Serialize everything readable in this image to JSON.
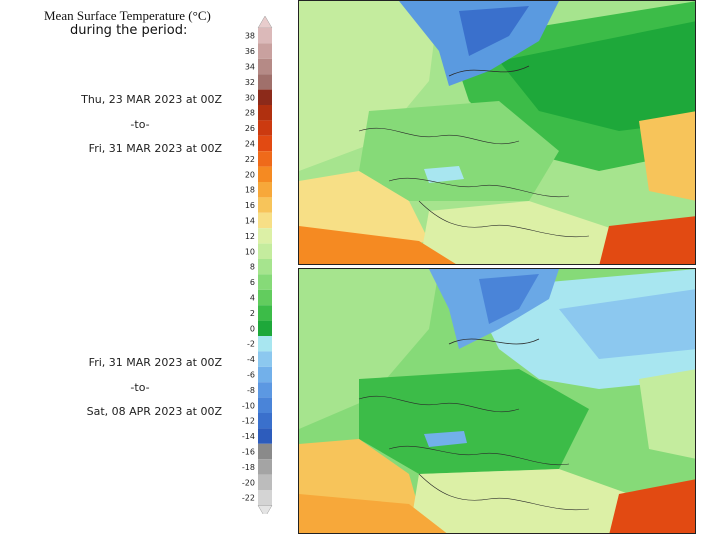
{
  "title": {
    "line1": "Mean Surface Temperature (°C)",
    "line2": "during the period:"
  },
  "periods": [
    {
      "start": "Thu, 23 MAR 2023 at 00Z",
      "to": "-to-",
      "end": "Fri, 31 MAR 2023 at 00Z"
    },
    {
      "start": "Fri, 31 MAR 2023 at 00Z",
      "to": "-to-",
      "end": "Sat, 08 APR 2023 at 00Z"
    }
  ],
  "legend": {
    "unit": "°C",
    "levels": [
      {
        "value": "38",
        "color": "#dbb9b9"
      },
      {
        "value": "36",
        "color": "#c9a19f"
      },
      {
        "value": "34",
        "color": "#b58a86"
      },
      {
        "value": "32",
        "color": "#a0706b"
      },
      {
        "value": "30",
        "color": "#8c2a1a"
      },
      {
        "value": "28",
        "color": "#b0300f"
      },
      {
        "value": "26",
        "color": "#cc3a10"
      },
      {
        "value": "24",
        "color": "#e24a12"
      },
      {
        "value": "22",
        "color": "#ef6a1a"
      },
      {
        "value": "20",
        "color": "#f58a22"
      },
      {
        "value": "18",
        "color": "#f7a83a"
      },
      {
        "value": "16",
        "color": "#f7c45a"
      },
      {
        "value": "14",
        "color": "#f7df86"
      },
      {
        "value": "12",
        "color": "#dcf0a6"
      },
      {
        "value": "10",
        "color": "#c4ec9e"
      },
      {
        "value": "8",
        "color": "#a6e48e"
      },
      {
        "value": "6",
        "color": "#86da78"
      },
      {
        "value": "4",
        "color": "#62cc5e"
      },
      {
        "value": "2",
        "color": "#3cbc48"
      },
      {
        "value": "0",
        "color": "#1ea83a"
      },
      {
        "value": "-2",
        "color": "#a8e6f0"
      },
      {
        "value": "-4",
        "color": "#8cc8ef"
      },
      {
        "value": "-6",
        "color": "#72b0ea"
      },
      {
        "value": "-8",
        "color": "#5c98e2"
      },
      {
        "value": "-10",
        "color": "#4a84d8"
      },
      {
        "value": "-12",
        "color": "#3a70cc"
      },
      {
        "value": "-14",
        "color": "#2d5cbc"
      },
      {
        "value": "-16",
        "color": "#8a8a8a"
      },
      {
        "value": "-18",
        "color": "#a4a4a4"
      },
      {
        "value": "-20",
        "color": "#bcbcbc"
      },
      {
        "value": "-22",
        "color": "#d4d4d4"
      }
    ],
    "top_arrow_color": "#e8cccc",
    "bottom_arrow_color": "#e4e4e4"
  },
  "maps": [
    {
      "region": "Europe",
      "scandinavia_color": "#5a9ae0",
      "russia_color": "#1ea83a",
      "north_africa_color": "#f58a22",
      "middle_east_color": "#e24a12"
    },
    {
      "region": "Europe",
      "scandinavia_color": "#6aa8e6",
      "russia_color": "#a8e6f0",
      "north_africa_color": "#f7a83a",
      "middle_east_color": "#e24a12"
    }
  ]
}
